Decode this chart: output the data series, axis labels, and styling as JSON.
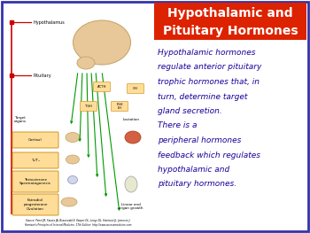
{
  "title_line1": "Hypothalamic and",
  "title_line2": "Pituitary Hormones",
  "title_bg": "#dd2200",
  "title_color": "#ffffff",
  "body_text_color": "#1a0099",
  "border_color": "#3333aa",
  "overall_bg": "#ffffff",
  "body_lines": [
    "Hypothalamic hormones",
    "regulate anterior pituitary",
    "trophic hormones that, in",
    "turn, determine target",
    "gland secretion.",
    "There is a",
    "peripheral hormones",
    "feedback which regulates",
    "hypothalamic and",
    "pituitary hormones."
  ],
  "brain_color": "#e8c898",
  "brain_edge": "#c8a870",
  "organ_color": "#e8c898",
  "liver_color": "#cc4422",
  "box_face": "#ffdd99",
  "box_edge": "#cc8800",
  "red_line": "#cc0000",
  "green_line": "#009900"
}
